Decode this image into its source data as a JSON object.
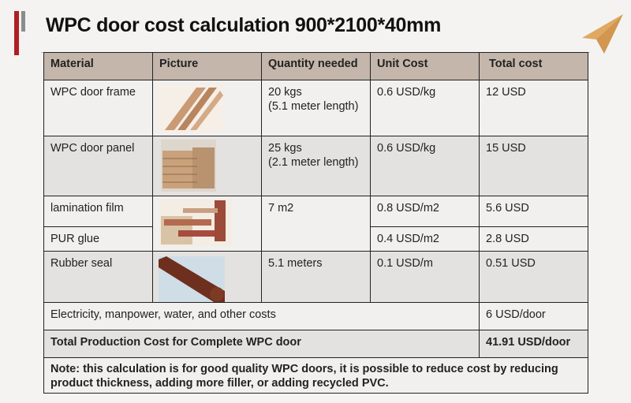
{
  "title": "WPC door cost calculation 900*2100*40mm",
  "colors": {
    "accent_red": "#b01e23",
    "header_bg": "#c4b6aa",
    "plane_icon": "#e0a860"
  },
  "table": {
    "headers": [
      "Material",
      "Picture",
      "Quantity needed",
      "Unit Cost",
      "Total cost"
    ],
    "rows": [
      {
        "material": "WPC door frame",
        "picture": "door-frame-profile-image",
        "quantity": "20 kgs",
        "quantity_note": "(5.1 meter length)",
        "unit_cost": "0.6 USD/kg",
        "total": "12 USD"
      },
      {
        "material": "WPC door panel",
        "picture": "door-panel-stack-image",
        "quantity": "25 kgs",
        "quantity_note": "(2.1 meter length)",
        "unit_cost": "0.6 USD/kg",
        "total": "15 USD"
      },
      {
        "material": "lamination film",
        "picture": "lamination-film-image",
        "quantity": "7 m2",
        "unit_cost": "0.8 USD/m2",
        "total": "5.6 USD"
      },
      {
        "material": "PUR glue",
        "unit_cost": "0.4 USD/m2",
        "total": "2.8 USD"
      },
      {
        "material": "Rubber seal",
        "picture": "rubber-seal-image",
        "quantity": "5.1 meters",
        "unit_cost": "0.1 USD/m",
        "total": "0.51 USD"
      }
    ],
    "other_costs": {
      "label": "Electricity, manpower, water, and other costs",
      "value": "6 USD/door"
    },
    "grand_total": {
      "label": "Total Production Cost for Complete WPC door",
      "value": "41.91 USD/door"
    },
    "note": "Note: this calculation is for good quality WPC doors, it is possible to reduce cost by reducing product thickness, adding more filler, or adding recycled PVC."
  }
}
